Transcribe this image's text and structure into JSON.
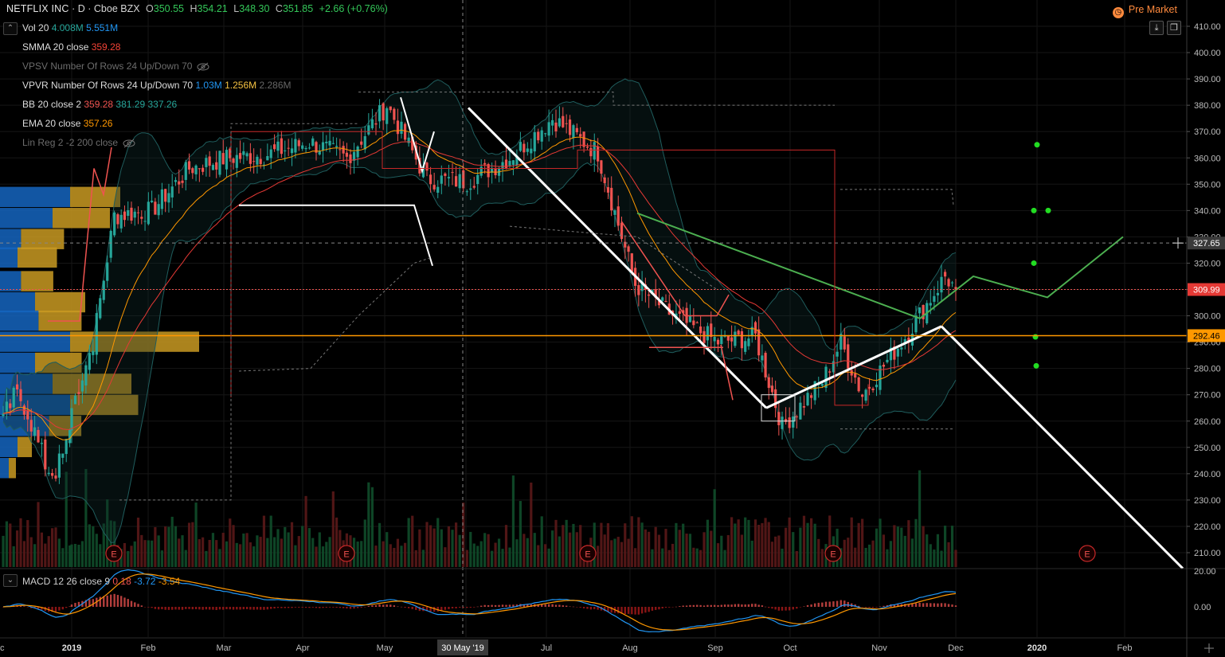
{
  "header": {
    "symbol": "NETFLIX INC",
    "interval": "D",
    "exchange": "Cboe BZX",
    "open_label": "O",
    "open": "350.55",
    "high_label": "H",
    "high": "354.21",
    "low_label": "L",
    "low": "348.30",
    "close_label": "C",
    "close": "351.85",
    "change": "+2.66 (+0.76%)"
  },
  "pre_market": {
    "icon": "clock",
    "label": "Pre Market"
  },
  "indicators": [
    {
      "name": "Vol 20",
      "values": [
        "4.008M",
        "5.551M"
      ],
      "colors": [
        "#26a69a",
        "#2196f3"
      ]
    },
    {
      "name": "SMMA 20 close",
      "values": [
        "359.28"
      ],
      "colors": [
        "#f44336"
      ]
    },
    {
      "name": "VPSV Number Of Rows 24 Up/Down 70",
      "values": [],
      "colors": [],
      "hidden": true
    },
    {
      "name": "VPVR Number Of Rows 24 Up/Down 70",
      "values": [
        "1.03M",
        "1.256M",
        "2.286M"
      ],
      "colors": [
        "#2196f3",
        "#f5c242",
        "#666666"
      ]
    },
    {
      "name": "BB 20 close 2",
      "values": [
        "359.28",
        "381.29",
        "337.26"
      ],
      "colors": [
        "#ef5350",
        "#26a69a",
        "#26a69a"
      ]
    },
    {
      "name": "EMA 20 close",
      "values": [
        "357.26"
      ],
      "colors": [
        "#ff9800"
      ]
    },
    {
      "name": "Lin Reg 2 -2 200 close",
      "values": [],
      "colors": [],
      "hidden": true
    }
  ],
  "macd": {
    "name": "MACD 12 26 close 9",
    "values": [
      "0.18",
      "-3.72",
      "-3.54"
    ],
    "colors": [
      "#ef5350",
      "#2196f3",
      "#ff9800"
    ]
  },
  "price_axis": {
    "ticks": [
      "410.00",
      "400.00",
      "390.00",
      "380.00",
      "370.00",
      "360.00",
      "350.00",
      "340.00",
      "330.00",
      "320.00",
      "310.00",
      "300.00",
      "290.00",
      "280.00",
      "270.00",
      "260.00",
      "250.00",
      "240.00",
      "230.00",
      "220.00",
      "210.00"
    ],
    "badges": [
      {
        "label": "327.65",
        "type": "crosshair"
      },
      {
        "label": "309.99",
        "type": "last"
      },
      {
        "label": "292.46",
        "type": "level"
      }
    ]
  },
  "macd_axis": {
    "ticks": [
      "20.00",
      "0.00"
    ]
  },
  "time_axis": {
    "labels": [
      "c",
      "2019",
      "Feb",
      "Mar",
      "Apr",
      "May",
      "30 May '19",
      "Jul",
      "Aug",
      "Sep",
      "Oct",
      "Nov",
      "Dec",
      "2020",
      "Feb"
    ]
  },
  "earnings_marker": "E",
  "colors": {
    "up": "#26a69a",
    "down": "#ef5350",
    "background": "#000000",
    "trend": "#ffffff",
    "projection": "#4caf50",
    "level": "#ff9800"
  },
  "chart_data": {
    "type": "candlestick",
    "series": [
      {
        "name": "NFLX",
        "points": [
          [
            "2019-01-02",
            265
          ],
          [
            "2019-01-10",
            290
          ],
          [
            "2019-01-18",
            338
          ],
          [
            "2019-02-01",
            340
          ],
          [
            "2019-02-15",
            356
          ],
          [
            "2019-03-01",
            360
          ],
          [
            "2019-03-15",
            361
          ],
          [
            "2019-04-01",
            366
          ],
          [
            "2019-04-15",
            360
          ],
          [
            "2019-04-30",
            380
          ],
          [
            "2019-05-15",
            352
          ],
          [
            "2019-05-30",
            351
          ],
          [
            "2019-06-15",
            360
          ],
          [
            "2019-07-01",
            375
          ],
          [
            "2019-07-18",
            362
          ],
          [
            "2019-08-01",
            312
          ],
          [
            "2019-08-15",
            300
          ],
          [
            "2019-09-01",
            290
          ],
          [
            "2019-09-15",
            292
          ],
          [
            "2019-09-25",
            258
          ],
          [
            "2019-10-10",
            275
          ],
          [
            "2019-10-17",
            290
          ],
          [
            "2019-10-25",
            270
          ],
          [
            "2019-11-10",
            292
          ],
          [
            "2019-11-25",
            315
          ],
          [
            "2019-11-29",
            310
          ]
        ]
      }
    ],
    "ylim": [
      200,
      415
    ]
  }
}
